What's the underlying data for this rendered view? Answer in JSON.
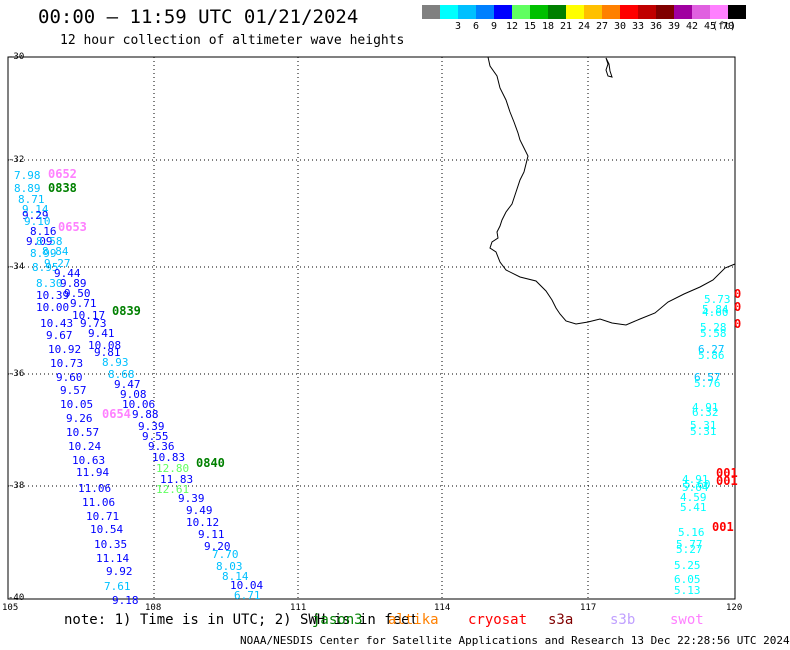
{
  "header": {
    "title": "00:00 – 11:59 UTC 01/21/2024",
    "subtitle": "12 hour collection of altimeter wave heights"
  },
  "legend": {
    "unit": "(ft)",
    "items": [
      {
        "color": "#808080",
        "label": ""
      },
      {
        "color": "#00ffff",
        "label": "3"
      },
      {
        "color": "#00c0ff",
        "label": "6"
      },
      {
        "color": "#0080ff",
        "label": "9"
      },
      {
        "color": "#0000ff",
        "label": "12"
      },
      {
        "color": "#60ff60",
        "label": "15"
      },
      {
        "color": "#00c000",
        "label": "18"
      },
      {
        "color": "#008000",
        "label": "21"
      },
      {
        "color": "#ffff00",
        "label": "24"
      },
      {
        "color": "#ffc000",
        "label": "27"
      },
      {
        "color": "#ff8000",
        "label": "30"
      },
      {
        "color": "#ff0000",
        "label": "33"
      },
      {
        "color": "#c00000",
        "label": "36"
      },
      {
        "color": "#800000",
        "label": "39"
      },
      {
        "color": "#a000a0",
        "label": "42"
      },
      {
        "color": "#e060e0",
        "label": "45"
      },
      {
        "color": "#ff80ff",
        "label": "70"
      },
      {
        "color": "#000000",
        "label": ""
      }
    ]
  },
  "axes": {
    "lat_labels": [
      "-30",
      "-32",
      "-34",
      "-36",
      "-38",
      "-40"
    ],
    "lon_labels": [
      "105",
      "108",
      "111",
      "114",
      "117",
      "120"
    ]
  },
  "pass_labels": [
    {
      "text": "0652",
      "color": "#ff80ff"
    },
    {
      "text": "0838",
      "color": "#008000"
    },
    {
      "text": "0653",
      "color": "#ff80ff"
    },
    {
      "text": "0839",
      "color": "#008000"
    },
    {
      "text": "0654",
      "color": "#ff80ff"
    },
    {
      "text": "0840",
      "color": "#008000"
    },
    {
      "text": "0",
      "color": "#ff0000"
    },
    {
      "text": "0",
      "color": "#ff0000"
    },
    {
      "text": "0",
      "color": "#ff0000"
    },
    {
      "text": "001",
      "color": "#ff0000"
    },
    {
      "text": "001",
      "color": "#ff0000"
    },
    {
      "text": "001",
      "color": "#ff0000"
    }
  ],
  "observations": [
    {
      "v": "7.98",
      "c": "#00c0ff"
    },
    {
      "v": "8.89",
      "c": "#00c0ff"
    },
    {
      "v": "8.71",
      "c": "#00c0ff"
    },
    {
      "v": "9.14",
      "c": "#00c0ff"
    },
    {
      "v": "9.29",
      "c": "#0000ff"
    },
    {
      "v": "9.10",
      "c": "#00c0ff"
    },
    {
      "v": "8.16",
      "c": "#0000ff"
    },
    {
      "v": "9.09",
      "c": "#0000ff"
    },
    {
      "v": "8.58",
      "c": "#00c0ff"
    },
    {
      "v": "8.99",
      "c": "#00c0ff"
    },
    {
      "v": "8.84",
      "c": "#00c0ff"
    },
    {
      "v": "8.95",
      "c": "#00c0ff"
    },
    {
      "v": "9.27",
      "c": "#00c0ff"
    },
    {
      "v": "9.44",
      "c": "#0000ff"
    },
    {
      "v": "8.30",
      "c": "#00c0ff"
    },
    {
      "v": "9.89",
      "c": "#0000ff"
    },
    {
      "v": "10.39",
      "c": "#0000ff"
    },
    {
      "v": "9.50",
      "c": "#0000ff"
    },
    {
      "v": "10.00",
      "c": "#0000ff"
    },
    {
      "v": "9.71",
      "c": "#0000ff"
    },
    {
      "v": "10.17",
      "c": "#0000ff"
    },
    {
      "v": "10.43",
      "c": "#0000ff"
    },
    {
      "v": "9.73",
      "c": "#0000ff"
    },
    {
      "v": "9.67",
      "c": "#0000ff"
    },
    {
      "v": "9.41",
      "c": "#0000ff"
    },
    {
      "v": "10.08",
      "c": "#0000ff"
    },
    {
      "v": "10.92",
      "c": "#0000ff"
    },
    {
      "v": "9.81",
      "c": "#0000ff"
    },
    {
      "v": "10.73",
      "c": "#0000ff"
    },
    {
      "v": "8.93",
      "c": "#00c0ff"
    },
    {
      "v": "8.68",
      "c": "#00c0ff"
    },
    {
      "v": "9.60",
      "c": "#0000ff"
    },
    {
      "v": "9.47",
      "c": "#0000ff"
    },
    {
      "v": "9.57",
      "c": "#0000ff"
    },
    {
      "v": "9.08",
      "c": "#0000ff"
    },
    {
      "v": "10.05",
      "c": "#0000ff"
    },
    {
      "v": "10.06",
      "c": "#0000ff"
    },
    {
      "v": "9.26",
      "c": "#0000ff"
    },
    {
      "v": "9.88",
      "c": "#0000ff"
    },
    {
      "v": "9.39",
      "c": "#0000ff"
    },
    {
      "v": "10.57",
      "c": "#0000ff"
    },
    {
      "v": "9.55",
      "c": "#0000ff"
    },
    {
      "v": "10.24",
      "c": "#0000ff"
    },
    {
      "v": "9.36",
      "c": "#0000ff"
    },
    {
      "v": "10.63",
      "c": "#0000ff"
    },
    {
      "v": "10.83",
      "c": "#0000ff"
    },
    {
      "v": "12.80",
      "c": "#60ff60"
    },
    {
      "v": "11.94",
      "c": "#0000ff"
    },
    {
      "v": "11.83",
      "c": "#0000ff"
    },
    {
      "v": "11.06",
      "c": "#0000ff"
    },
    {
      "v": "12.61",
      "c": "#60ff60"
    },
    {
      "v": "9.39",
      "c": "#0000ff"
    },
    {
      "v": "11.06",
      "c": "#0000ff"
    },
    {
      "v": "9.49",
      "c": "#0000ff"
    },
    {
      "v": "10.71",
      "c": "#0000ff"
    },
    {
      "v": "10.12",
      "c": "#0000ff"
    },
    {
      "v": "10.54",
      "c": "#0000ff"
    },
    {
      "v": "9.11",
      "c": "#0000ff"
    },
    {
      "v": "10.35",
      "c": "#0000ff"
    },
    {
      "v": "9.20",
      "c": "#0000ff"
    },
    {
      "v": "7.70",
      "c": "#00c0ff"
    },
    {
      "v": "11.14",
      "c": "#0000ff"
    },
    {
      "v": "8.03",
      "c": "#00c0ff"
    },
    {
      "v": "9.92",
      "c": "#0000ff"
    },
    {
      "v": "8.14",
      "c": "#00c0ff"
    },
    {
      "v": "7.61",
      "c": "#00c0ff"
    },
    {
      "v": "10.04",
      "c": "#0000ff"
    },
    {
      "v": "6.71",
      "c": "#00c0ff"
    },
    {
      "v": "9.18",
      "c": "#0000ff"
    },
    {
      "v": "5.73",
      "c": "#00ffff"
    },
    {
      "v": "5.84",
      "c": "#00ffff"
    },
    {
      "v": "4.60",
      "c": "#00ffff"
    },
    {
      "v": "5.28",
      "c": "#00ffff"
    },
    {
      "v": "5.58",
      "c": "#00ffff"
    },
    {
      "v": "6.27",
      "c": "#00c0ff"
    },
    {
      "v": "5.86",
      "c": "#00ffff"
    },
    {
      "v": "6.57",
      "c": "#00c0ff"
    },
    {
      "v": "5.76",
      "c": "#00ffff"
    },
    {
      "v": "4.91",
      "c": "#00ffff"
    },
    {
      "v": "6.32",
      "c": "#00ffff"
    },
    {
      "v": "5.31",
      "c": "#00ffff"
    },
    {
      "v": "5.31",
      "c": "#00ffff"
    },
    {
      "v": "4.91",
      "c": "#00ffff"
    },
    {
      "v": "5.60",
      "c": "#00ffff"
    },
    {
      "v": "5.64",
      "c": "#00ffff"
    },
    {
      "v": "4.59",
      "c": "#00ffff"
    },
    {
      "v": "5.41",
      "c": "#00ffff"
    },
    {
      "v": "5.16",
      "c": "#00ffff"
    },
    {
      "v": "5.77",
      "c": "#00ffff"
    },
    {
      "v": "5.27",
      "c": "#00ffff"
    },
    {
      "v": "5.25",
      "c": "#00ffff"
    },
    {
      "v": "6.05",
      "c": "#00ffff"
    },
    {
      "v": "5.13",
      "c": "#00ffff"
    }
  ],
  "note": "note: 1) Time is in UTC; 2) SWH is in feet",
  "missions": [
    {
      "name": "jason3",
      "color": "#008000"
    },
    {
      "name": "altika",
      "color": "#ff8000"
    },
    {
      "name": "cryosat",
      "color": "#ff0000"
    },
    {
      "name": "s3a",
      "color": "#800000"
    },
    {
      "name": "s3b",
      "color": "#c0a0ff"
    },
    {
      "name": "swot",
      "color": "#ff80ff"
    }
  ],
  "footer": "NOAA/NESDIS Center for Satellite Applications and Research   13 Dec 22:28:56 UTC 2024"
}
